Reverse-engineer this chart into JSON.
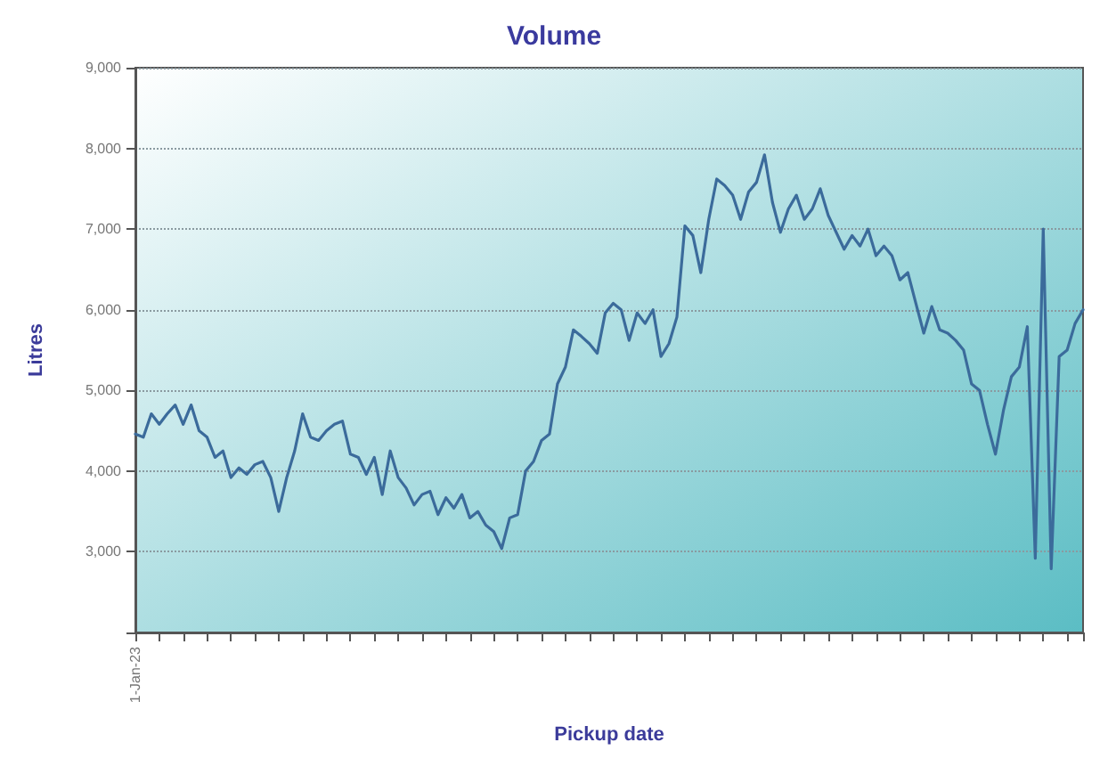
{
  "chart_data": {
    "type": "line",
    "title": "Volume",
    "xlabel": "Pickup date",
    "ylabel": "Litres",
    "categories": [
      "1-Jan-23",
      null,
      null,
      null,
      null,
      null,
      null,
      null,
      null,
      null,
      null,
      null,
      null,
      null,
      null,
      null,
      null,
      null,
      null,
      null,
      null,
      null,
      null,
      null,
      null,
      null,
      null,
      null,
      null,
      null,
      null,
      null,
      null,
      null,
      null,
      null,
      null,
      null,
      null,
      null,
      null,
      null,
      null,
      null,
      null,
      null,
      null,
      null,
      null,
      null,
      null,
      null,
      null,
      null,
      null,
      null,
      null,
      null,
      null,
      null,
      null,
      null,
      null,
      null,
      null,
      null,
      null,
      null,
      null,
      null,
      null,
      null,
      null,
      null,
      null,
      null,
      null,
      null,
      null,
      null,
      null,
      null,
      null,
      null,
      null,
      null,
      null,
      null,
      null,
      null,
      null,
      null,
      null,
      null,
      null,
      null,
      null,
      null,
      null,
      null,
      null,
      null,
      null,
      null,
      null,
      null,
      null,
      null,
      null,
      null,
      null,
      null,
      null,
      null,
      null,
      null,
      null,
      null,
      null,
      null
    ],
    "series": [
      {
        "color": "#3b6b9b",
        "values": [
          4460,
          4420,
          4710,
          4580,
          4710,
          4820,
          4580,
          4820,
          4500,
          4420,
          4170,
          4250,
          3920,
          4040,
          3960,
          4080,
          4120,
          3920,
          3500,
          3920,
          4250,
          4710,
          4420,
          4380,
          4500,
          4580,
          4620,
          4210,
          4170,
          3960,
          4170,
          3710,
          4250,
          3920,
          3790,
          3580,
          3710,
          3750,
          3460,
          3670,
          3540,
          3710,
          3420,
          3500,
          3330,
          3250,
          3040,
          3420,
          3460,
          4000,
          4120,
          4380,
          4460,
          5080,
          5290,
          5750,
          5670,
          5580,
          5460,
          5960,
          6080,
          6000,
          5620,
          5960,
          5830,
          6000,
          5420,
          5580,
          5910,
          7040,
          6920,
          6460,
          7120,
          7620,
          7540,
          7420,
          7120,
          7460,
          7580,
          7920,
          7330,
          6960,
          7250,
          7420,
          7120,
          7250,
          7500,
          7170,
          6960,
          6750,
          6920,
          6790,
          7000,
          6670,
          6790,
          6670,
          6370,
          6460,
          6080,
          5710,
          6040,
          5750,
          5710,
          5620,
          5500,
          5080,
          5000,
          4580,
          4210,
          4750,
          5170,
          5290,
          5790,
          2920,
          7000,
          2790,
          5420,
          5500,
          5830,
          6000
        ]
      }
    ],
    "ylim": [
      2000,
      9000
    ],
    "yticks": [
      {
        "value": 2000,
        "label": null
      },
      {
        "value": 3000,
        "label": "3,000"
      },
      {
        "value": 4000,
        "label": "4,000"
      },
      {
        "value": 5000,
        "label": "5,000"
      },
      {
        "value": 6000,
        "label": "6,000"
      },
      {
        "value": 7000,
        "label": "7,000"
      },
      {
        "value": 8000,
        "label": "8,000"
      },
      {
        "value": 9000,
        "label": "9,000"
      }
    ],
    "grid": "y",
    "marker": "none",
    "line_style": "solid"
  }
}
